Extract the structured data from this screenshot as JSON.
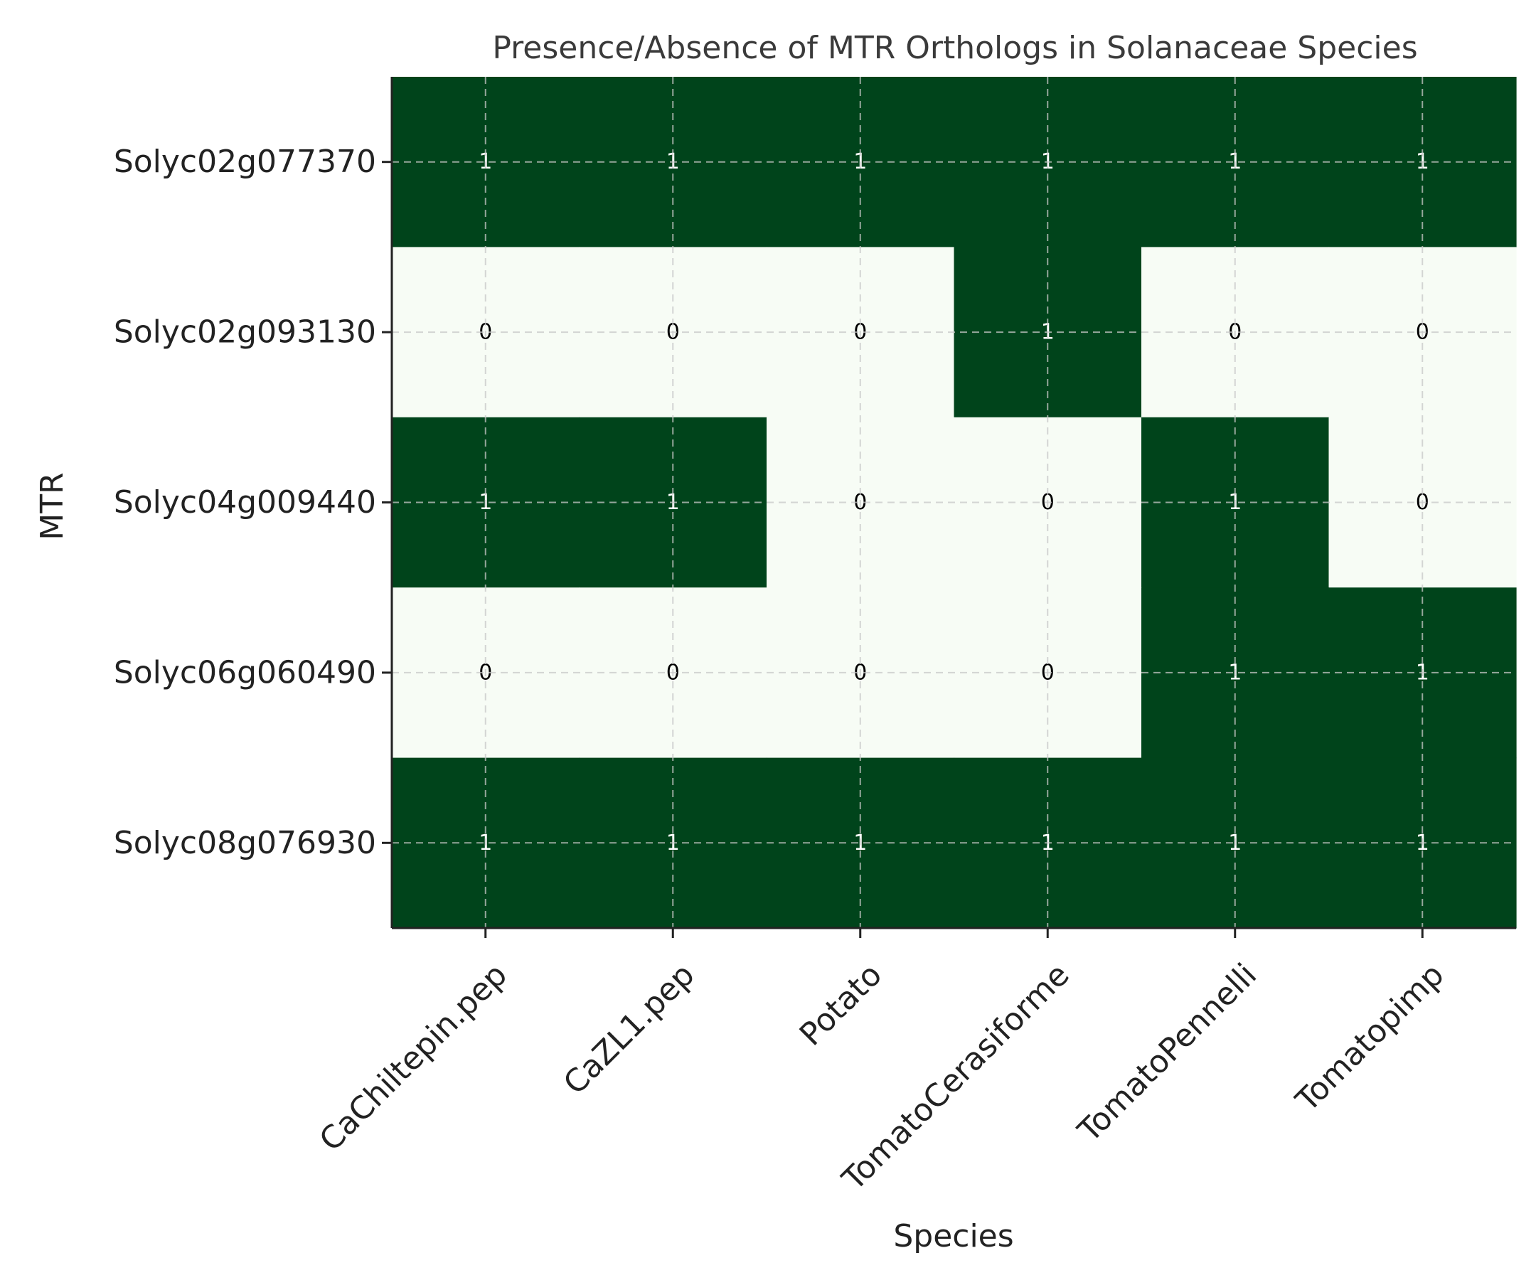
{
  "colors": {
    "present": "#00441b",
    "absent": "#f7fcf5",
    "present_text": "#ffffff",
    "absent_text": "#000000"
  },
  "chart_data": {
    "type": "heatmap",
    "title": "Presence/Absence of MTR Orthologs in Solanaceae Species",
    "xlabel": "Species",
    "ylabel": "MTR",
    "x_categories": [
      "CaChiltepin.pep",
      "CaZL1.pep",
      "Potato",
      "TomatoCerasiforme",
      "TomatoPennelli",
      "Tomatopimp"
    ],
    "y_categories": [
      "Solyc02g077370",
      "Solyc02g093130",
      "Solyc04g009440",
      "Solyc06g060490",
      "Solyc08g076930"
    ],
    "values": [
      [
        1,
        1,
        1,
        1,
        1,
        1
      ],
      [
        0,
        0,
        0,
        1,
        0,
        0
      ],
      [
        1,
        1,
        0,
        0,
        1,
        0
      ],
      [
        0,
        0,
        0,
        0,
        1,
        1
      ],
      [
        1,
        1,
        1,
        1,
        1,
        1
      ]
    ],
    "grid": true,
    "colormap": "Greens"
  }
}
